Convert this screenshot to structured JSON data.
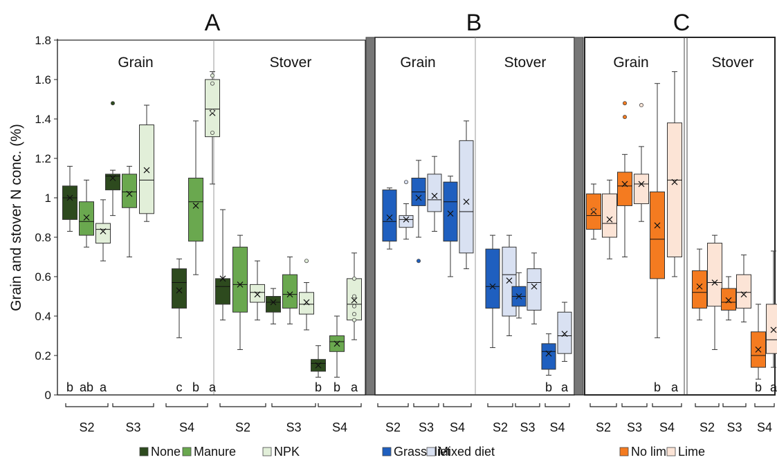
{
  "ylabel": "Grain and stover N conc. (%)",
  "y_ticks": [
    "0",
    "0.2",
    "0.4",
    "0.6",
    "0.8",
    "1",
    "1.2",
    "1.4",
    "1.6",
    "1.8"
  ],
  "chart_data": [
    {
      "panel": "A",
      "type": "box",
      "ylim": [
        0,
        1.8
      ],
      "ylabel": "Grain and stover N conc. (%)",
      "legend": [
        {
          "label": "None",
          "color": "#2d4a1e"
        },
        {
          "label": "Manure",
          "color": "#6aa84f"
        },
        {
          "label": "NPK",
          "color": "#e2efd9"
        }
      ],
      "sections": [
        {
          "label": "Grain",
          "groups": [
            {
              "site": "S2",
              "letters": "b ab a",
              "boxes": [
                {
                  "treatment": "None",
                  "min": 0.83,
                  "q1": 0.89,
                  "median": 1.0,
                  "q3": 1.06,
                  "max": 1.16,
                  "mean": 1.0,
                  "outliers": []
                },
                {
                  "treatment": "Manure",
                  "min": 0.75,
                  "q1": 0.81,
                  "median": 0.88,
                  "q3": 0.98,
                  "max": 1.09,
                  "mean": 0.9,
                  "outliers": []
                },
                {
                  "treatment": "NPK",
                  "min": 0.68,
                  "q1": 0.77,
                  "median": 0.84,
                  "q3": 0.87,
                  "max": 0.99,
                  "mean": 0.83,
                  "outliers": []
                }
              ]
            },
            {
              "site": "S3",
              "letters": "",
              "boxes": [
                {
                  "treatment": "None",
                  "min": 0.91,
                  "q1": 1.04,
                  "median": 1.11,
                  "q3": 1.12,
                  "max": 1.14,
                  "mean": 1.1,
                  "outliers": [
                    1.48
                  ]
                },
                {
                  "treatment": "Manure",
                  "min": 0.7,
                  "q1": 0.95,
                  "median": 1.03,
                  "q3": 1.12,
                  "max": 1.16,
                  "mean": 1.02,
                  "outliers": []
                },
                {
                  "treatment": "NPK",
                  "min": 0.88,
                  "q1": 0.92,
                  "median": 1.09,
                  "q3": 1.37,
                  "max": 1.47,
                  "mean": 1.14,
                  "outliers": []
                }
              ]
            },
            {
              "site": "S4",
              "letters": "c b a",
              "boxes": [
                {
                  "treatment": "None",
                  "min": 0.29,
                  "q1": 0.44,
                  "median": 0.57,
                  "q3": 0.64,
                  "max": 0.69,
                  "mean": 0.53,
                  "outliers": []
                },
                {
                  "treatment": "Manure",
                  "min": 0.61,
                  "q1": 0.78,
                  "median": 0.98,
                  "q3": 1.1,
                  "max": 1.39,
                  "mean": 0.96,
                  "outliers": []
                },
                {
                  "treatment": "NPK",
                  "min": 1.07,
                  "q1": 1.31,
                  "median": 1.45,
                  "q3": 1.6,
                  "max": 1.64,
                  "mean": 1.43,
                  "outliers": [
                    1.62,
                    1.58,
                    1.44,
                    1.33
                  ]
                }
              ]
            }
          ]
        },
        {
          "label": "Stover",
          "groups": [
            {
              "site": "S2",
              "letters": "",
              "boxes": [
                {
                  "treatment": "None",
                  "min": 0.38,
                  "q1": 0.46,
                  "median": 0.55,
                  "q3": 0.59,
                  "max": 0.94,
                  "mean": 0.59,
                  "outliers": []
                },
                {
                  "treatment": "Manure",
                  "min": 0.23,
                  "q1": 0.42,
                  "median": 0.56,
                  "q3": 0.75,
                  "max": 0.81,
                  "mean": 0.56,
                  "outliers": []
                },
                {
                  "treatment": "NPK",
                  "min": 0.38,
                  "q1": 0.47,
                  "median": 0.52,
                  "q3": 0.56,
                  "max": 0.68,
                  "mean": 0.51,
                  "outliers": []
                }
              ]
            },
            {
              "site": "S3",
              "letters": "",
              "boxes": [
                {
                  "treatment": "None",
                  "min": 0.36,
                  "q1": 0.42,
                  "median": 0.47,
                  "q3": 0.5,
                  "max": 0.54,
                  "mean": 0.47,
                  "outliers": []
                },
                {
                  "treatment": "Manure",
                  "min": 0.36,
                  "q1": 0.44,
                  "median": 0.51,
                  "q3": 0.61,
                  "max": 0.7,
                  "mean": 0.51,
                  "outliers": []
                },
                {
                  "treatment": "NPK",
                  "min": 0.33,
                  "q1": 0.41,
                  "median": 0.46,
                  "q3": 0.52,
                  "max": 0.57,
                  "mean": 0.47,
                  "outliers": [
                    0.68
                  ]
                }
              ]
            },
            {
              "site": "S4",
              "letters": "b b a",
              "boxes": [
                {
                  "treatment": "None",
                  "min": 0.09,
                  "q1": 0.12,
                  "median": 0.16,
                  "q3": 0.18,
                  "max": 0.25,
                  "mean": 0.15,
                  "outliers": []
                },
                {
                  "treatment": "Manure",
                  "min": 0.09,
                  "q1": 0.22,
                  "median": 0.27,
                  "q3": 0.3,
                  "max": 0.4,
                  "mean": 0.26,
                  "outliers": []
                },
                {
                  "treatment": "NPK",
                  "min": 0.28,
                  "q1": 0.38,
                  "median": 0.46,
                  "q3": 0.59,
                  "max": 0.72,
                  "mean": 0.48,
                  "outliers": [
                    0.59,
                    0.5,
                    0.45,
                    0.41,
                    0.38
                  ]
                }
              ]
            }
          ]
        }
      ]
    },
    {
      "panel": "B",
      "type": "box",
      "ylim": [
        0,
        1.8
      ],
      "legend": [
        {
          "label": "Grass diet",
          "color": "#1f5fbf"
        },
        {
          "label": "Mixed diet",
          "color": "#d9e1f2"
        }
      ],
      "sections": [
        {
          "label": "Grain",
          "groups": [
            {
              "site": "S2",
              "letters": "",
              "boxes": [
                {
                  "treatment": "Grass diet",
                  "min": 0.74,
                  "q1": 0.78,
                  "median": 0.88,
                  "q3": 1.04,
                  "max": 1.05,
                  "mean": 0.9,
                  "outliers": []
                },
                {
                  "treatment": "Mixed diet",
                  "min": 0.79,
                  "q1": 0.85,
                  "median": 0.89,
                  "q3": 0.91,
                  "max": 0.97,
                  "mean": 0.89,
                  "outliers": [
                    1.08
                  ]
                }
              ]
            },
            {
              "site": "S3",
              "letters": "",
              "boxes": [
                {
                  "treatment": "Grass diet",
                  "min": 0.8,
                  "q1": 0.96,
                  "median": 1.03,
                  "q3": 1.1,
                  "max": 1.19,
                  "mean": 1.0,
                  "outliers": [
                    0.68
                  ]
                },
                {
                  "treatment": "Mixed diet",
                  "min": 0.83,
                  "q1": 0.93,
                  "median": 0.99,
                  "q3": 1.12,
                  "max": 1.21,
                  "mean": 1.01,
                  "outliers": []
                }
              ]
            },
            {
              "site": "S4",
              "letters": "",
              "boxes": [
                {
                  "treatment": "Grass diet",
                  "min": 0.6,
                  "q1": 0.78,
                  "median": 0.98,
                  "q3": 1.08,
                  "max": 1.11,
                  "mean": 0.92,
                  "outliers": []
                },
                {
                  "treatment": "Mixed diet",
                  "min": 0.64,
                  "q1": 0.72,
                  "median": 0.93,
                  "q3": 1.29,
                  "max": 1.39,
                  "mean": 0.98,
                  "outliers": []
                }
              ]
            }
          ]
        },
        {
          "label": "Stover",
          "groups": [
            {
              "site": "S2",
              "letters": "",
              "boxes": [
                {
                  "treatment": "Grass diet",
                  "min": 0.24,
                  "q1": 0.44,
                  "median": 0.55,
                  "q3": 0.74,
                  "max": 0.81,
                  "mean": 0.55,
                  "outliers": []
                },
                {
                  "treatment": "Mixed diet",
                  "min": 0.3,
                  "q1": 0.4,
                  "median": 0.61,
                  "q3": 0.75,
                  "max": 0.81,
                  "mean": 0.58,
                  "outliers": []
                }
              ]
            },
            {
              "site": "S3",
              "letters": "",
              "boxes": [
                {
                  "treatment": "Grass diet",
                  "min": 0.39,
                  "q1": 0.45,
                  "median": 0.5,
                  "q3": 0.55,
                  "max": 0.62,
                  "mean": 0.5,
                  "outliers": []
                },
                {
                  "treatment": "Mixed diet",
                  "min": 0.36,
                  "q1": 0.43,
                  "median": 0.57,
                  "q3": 0.64,
                  "max": 0.72,
                  "mean": 0.55,
                  "outliers": []
                }
              ]
            },
            {
              "site": "S4",
              "letters": "b a",
              "boxes": [
                {
                  "treatment": "Grass diet",
                  "min": 0.1,
                  "q1": 0.13,
                  "median": 0.22,
                  "q3": 0.26,
                  "max": 0.31,
                  "mean": 0.21,
                  "outliers": []
                },
                {
                  "treatment": "Mixed diet",
                  "min": 0.17,
                  "q1": 0.21,
                  "median": 0.3,
                  "q3": 0.42,
                  "max": 0.47,
                  "mean": 0.31,
                  "outliers": []
                }
              ]
            }
          ]
        }
      ]
    },
    {
      "panel": "C",
      "type": "box",
      "ylim": [
        0,
        1.8
      ],
      "legend": [
        {
          "label": "No lime",
          "color": "#f47b20"
        },
        {
          "label": "Lime",
          "color": "#fce4d6"
        }
      ],
      "sections": [
        {
          "label": "Grain",
          "groups": [
            {
              "site": "S2",
              "letters": "",
              "boxes": [
                {
                  "treatment": "No lime",
                  "min": 0.79,
                  "q1": 0.84,
                  "median": 0.91,
                  "q3": 1.02,
                  "max": 1.07,
                  "mean": 0.93,
                  "outliers": [
                    0.94
                  ]
                },
                {
                  "treatment": "Lime",
                  "min": 0.69,
                  "q1": 0.8,
                  "median": 0.87,
                  "q3": 1.02,
                  "max": 1.09,
                  "mean": 0.89,
                  "outliers": []
                }
              ]
            },
            {
              "site": "S3",
              "letters": "",
              "boxes": [
                {
                  "treatment": "No lime",
                  "min": 0.7,
                  "q1": 0.96,
                  "median": 1.06,
                  "q3": 1.13,
                  "max": 1.22,
                  "mean": 1.07,
                  "outliers": [
                    1.48,
                    1.41
                  ]
                },
                {
                  "treatment": "Lime",
                  "min": 0.88,
                  "q1": 0.97,
                  "median": 1.07,
                  "q3": 1.12,
                  "max": 1.26,
                  "mean": 1.07,
                  "outliers": [
                    1.47
                  ]
                }
              ]
            },
            {
              "site": "S4",
              "letters": "b a",
              "boxes": [
                {
                  "treatment": "No lime",
                  "min": 0.29,
                  "q1": 0.59,
                  "median": 0.79,
                  "q3": 1.03,
                  "max": 1.58,
                  "mean": 0.86,
                  "outliers": []
                },
                {
                  "treatment": "Lime",
                  "min": 0.6,
                  "q1": 0.7,
                  "median": 1.09,
                  "q3": 1.38,
                  "max": 1.64,
                  "mean": 1.08,
                  "outliers": []
                }
              ]
            }
          ]
        },
        {
          "label": "Stover",
          "groups": [
            {
              "site": "S2",
              "letters": "",
              "boxes": [
                {
                  "treatment": "No lime",
                  "min": 0.38,
                  "q1": 0.44,
                  "median": 0.52,
                  "q3": 0.63,
                  "max": 0.74,
                  "mean": 0.55,
                  "outliers": []
                },
                {
                  "treatment": "Lime",
                  "min": 0.23,
                  "q1": 0.45,
                  "median": 0.57,
                  "q3": 0.77,
                  "max": 0.81,
                  "mean": 0.57,
                  "outliers": []
                }
              ]
            },
            {
              "site": "S3",
              "letters": "",
              "boxes": [
                {
                  "treatment": "No lime",
                  "min": 0.38,
                  "q1": 0.43,
                  "median": 0.47,
                  "q3": 0.54,
                  "max": 0.6,
                  "mean": 0.48,
                  "outliers": []
                },
                {
                  "treatment": "Lime",
                  "min": 0.37,
                  "q1": 0.44,
                  "median": 0.52,
                  "q3": 0.61,
                  "max": 0.71,
                  "mean": 0.51,
                  "outliers": []
                }
              ]
            },
            {
              "site": "S4",
              "letters": "b a",
              "boxes": [
                {
                  "treatment": "No lime",
                  "min": 0.08,
                  "q1": 0.14,
                  "median": 0.2,
                  "q3": 0.32,
                  "max": 0.46,
                  "mean": 0.23,
                  "outliers": []
                },
                {
                  "treatment": "Lime",
                  "min": 0.14,
                  "q1": 0.21,
                  "median": 0.28,
                  "q3": 0.46,
                  "max": 0.73,
                  "mean": 0.33,
                  "outliers": []
                }
              ]
            }
          ]
        }
      ]
    }
  ]
}
